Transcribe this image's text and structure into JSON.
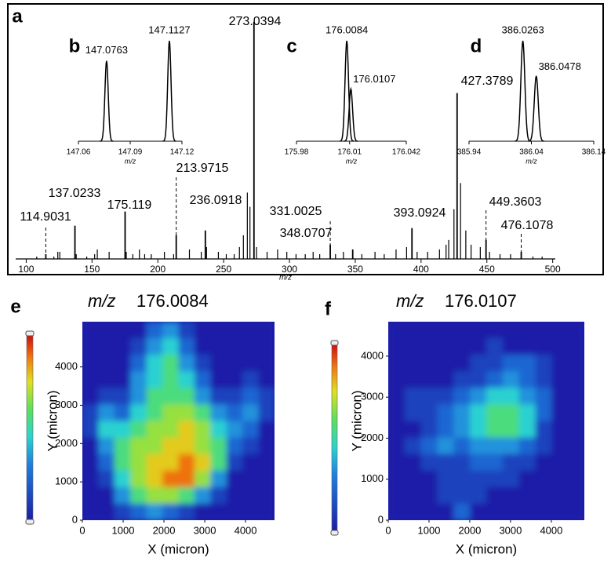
{
  "chart_data": [
    {
      "type": "spectrum",
      "panel": "a",
      "xlabel": "m/z",
      "xlim": [
        92,
        502
      ],
      "xticks": [
        100,
        150,
        200,
        250,
        300,
        350,
        400,
        450,
        500
      ],
      "ylim": [
        0,
        100
      ],
      "color": "#000000",
      "peaks": {
        "x": [
          114.9031,
          137.0233,
          175.119,
          213.9715,
          236.0918,
          273.0394,
          331.0025,
          348.0707,
          393.0924,
          427.3789,
          449.3603,
          476.1078
        ],
        "values": [
          2,
          14,
          20,
          10,
          12,
          100,
          6,
          4,
          13,
          70,
          8,
          3
        ]
      },
      "minor_peaks": {
        "x": [
          108,
          121,
          124,
          125.5,
          138,
          146,
          152,
          154,
          163,
          176,
          181,
          186,
          190,
          195,
          205,
          212,
          224,
          233,
          237,
          246,
          252,
          258,
          262,
          265,
          268,
          270,
          275,
          283,
          291,
          298,
          305,
          312,
          318,
          323,
          335,
          341,
          355,
          365,
          372,
          381,
          389,
          397,
          405,
          414,
          419,
          421,
          425,
          430,
          434,
          438,
          445,
          452,
          460,
          468,
          485,
          492
        ],
        "values": [
          1,
          1,
          3,
          3,
          2,
          1,
          2,
          4,
          3,
          3,
          2,
          4,
          2,
          2,
          3,
          2,
          4,
          3,
          5,
          3,
          2,
          2,
          5,
          10,
          28,
          22,
          5,
          3,
          4,
          3,
          2,
          2,
          3,
          2,
          2,
          3,
          2,
          3,
          2,
          4,
          5,
          3,
          3,
          4,
          6,
          8,
          21,
          32,
          12,
          6,
          5,
          3,
          2,
          2,
          1,
          1
        ]
      }
    },
    {
      "type": "inset",
      "panel": "b",
      "xlabel": "m/z",
      "xlim": [
        147.06,
        147.12
      ],
      "xticks": [
        147.06,
        147.09,
        147.12
      ],
      "ylim": [
        0,
        100
      ],
      "x": [
        147.0763,
        147.1127
      ],
      "values": [
        80,
        100
      ]
    },
    {
      "type": "inset",
      "panel": "c",
      "xlabel": "m/z",
      "xlim": [
        175.98,
        176.042
      ],
      "xticks": [
        175.98,
        176.01,
        176.042
      ],
      "ylim": [
        0,
        100
      ],
      "x": [
        176.0084,
        176.0107
      ],
      "values": [
        100,
        52
      ]
    },
    {
      "type": "inset",
      "panel": "d",
      "xlabel": "m/z",
      "xlim": [
        385.94,
        386.14
      ],
      "xticks": [
        385.94,
        386.04,
        386.14
      ],
      "ylim": [
        0,
        100
      ],
      "x": [
        386.0263,
        386.0478
      ],
      "values": [
        100,
        65
      ]
    },
    {
      "type": "heatmap",
      "panel": "e",
      "title": {
        "var": "m/z",
        "value": "176.0084"
      },
      "xlabel": "X (micron)",
      "ylabel": "Y (micron)",
      "xlim": [
        0,
        4710
      ],
      "ylim": [
        0,
        5180
      ],
      "xticks": [
        0,
        1000,
        2000,
        3000,
        4000
      ],
      "yticks": [
        0,
        1000,
        2000,
        3000,
        4000
      ],
      "clim": [
        0,
        9
      ],
      "z": [
        [
          0,
          0,
          0,
          0,
          2,
          3,
          1,
          0,
          0,
          0,
          0,
          0
        ],
        [
          0,
          0,
          0,
          1,
          3,
          4,
          2,
          0,
          0,
          0,
          0,
          0
        ],
        [
          0,
          0,
          0,
          2,
          4,
          5,
          3,
          1,
          0,
          0,
          0,
          0
        ],
        [
          0,
          0,
          0,
          3,
          4,
          5,
          4,
          2,
          0,
          0,
          1,
          0
        ],
        [
          0,
          1,
          1,
          3,
          5,
          5,
          5,
          3,
          1,
          1,
          2,
          1
        ],
        [
          1,
          3,
          2,
          4,
          5,
          6,
          6,
          5,
          3,
          2,
          3,
          1
        ],
        [
          1,
          4,
          4,
          5,
          6,
          6,
          7,
          6,
          4,
          3,
          2,
          0
        ],
        [
          0,
          3,
          5,
          6,
          6,
          7,
          7,
          6,
          5,
          2,
          1,
          0
        ],
        [
          0,
          2,
          5,
          6,
          7,
          7,
          8,
          7,
          5,
          1,
          0,
          0
        ],
        [
          0,
          1,
          4,
          6,
          7,
          8,
          8,
          6,
          3,
          0,
          0,
          0
        ],
        [
          0,
          0,
          3,
          5,
          6,
          6,
          5,
          3,
          1,
          0,
          0,
          0
        ],
        [
          0,
          0,
          1,
          2,
          3,
          2,
          1,
          0,
          0,
          0,
          0,
          0
        ]
      ]
    },
    {
      "type": "heatmap",
      "panel": "f",
      "title": {
        "var": "m/z",
        "value": "176.0107"
      },
      "xlabel": "X (micron)",
      "ylabel": "Y (micron)",
      "xlim": [
        0,
        4810
      ],
      "ylim": [
        0,
        4840
      ],
      "xticks": [
        0,
        1000,
        2000,
        3000,
        4000
      ],
      "yticks": [
        0,
        1000,
        2000,
        3000,
        4000
      ],
      "clim": [
        0,
        9
      ],
      "z": [
        [
          0,
          0,
          0,
          0,
          0,
          0,
          0,
          0,
          0,
          0,
          0,
          0
        ],
        [
          0,
          0,
          0,
          0,
          0,
          0,
          1,
          0,
          0,
          0,
          0,
          0
        ],
        [
          0,
          0,
          0,
          0,
          0,
          1,
          1,
          2,
          2,
          1,
          0,
          0
        ],
        [
          0,
          0,
          0,
          0,
          1,
          1,
          2,
          3,
          2,
          1,
          0,
          0
        ],
        [
          0,
          1,
          1,
          1,
          2,
          3,
          4,
          4,
          3,
          2,
          0,
          0
        ],
        [
          0,
          1,
          1,
          2,
          3,
          4,
          5,
          5,
          4,
          2,
          0,
          0
        ],
        [
          0,
          0,
          1,
          2,
          3,
          4,
          5,
          5,
          4,
          1,
          0,
          0
        ],
        [
          0,
          1,
          2,
          3,
          2,
          3,
          3,
          3,
          2,
          1,
          0,
          0
        ],
        [
          0,
          0,
          1,
          1,
          1,
          2,
          2,
          1,
          1,
          0,
          0,
          0
        ],
        [
          0,
          0,
          0,
          1,
          1,
          1,
          1,
          1,
          0,
          0,
          0,
          0
        ],
        [
          0,
          0,
          0,
          1,
          1,
          1,
          0,
          0,
          0,
          0,
          0,
          0
        ],
        [
          0,
          0,
          0,
          0,
          2,
          0,
          0,
          0,
          0,
          0,
          0,
          0
        ]
      ]
    }
  ]
}
